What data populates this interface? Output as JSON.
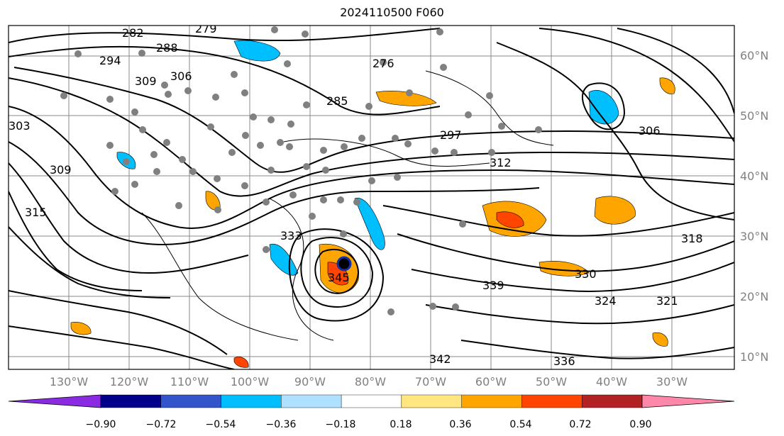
{
  "title": "2024110500 F060",
  "latitude_labels": [
    "60°N",
    "50°N",
    "40°N",
    "30°N",
    "20°N",
    "10°N"
  ],
  "longitude_labels": [
    "130°W",
    "120°W",
    "110°W",
    "100°W",
    "90°W",
    "80°W",
    "70°W",
    "60°W",
    "50°W",
    "40°W",
    "30°W"
  ],
  "contour_labels": [
    "282",
    "279",
    "288",
    "294",
    "306",
    "309",
    "276",
    "285",
    "297",
    "303",
    "306",
    "309",
    "312",
    "315",
    "318",
    "321",
    "324",
    "330",
    "333",
    "336",
    "339",
    "342",
    "345"
  ],
  "colorbar": {
    "ticks": [
      "−0.90",
      "−0.72",
      "−0.54",
      "−0.36",
      "−0.18",
      "0.18",
      "0.36",
      "0.54",
      "0.72",
      "0.90"
    ],
    "colors": [
      "#8a2be2",
      "#00008b",
      "#3355cc",
      "#00bfff",
      "#aee0ff",
      "#ffffff",
      "#ffe680",
      "#ffa500",
      "#ff4500",
      "#b22222",
      "#ff88aa"
    ]
  }
}
